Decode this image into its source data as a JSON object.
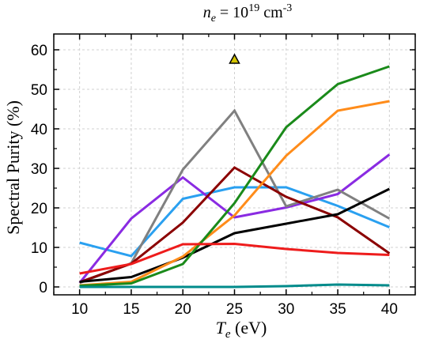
{
  "chart_data": {
    "type": "line",
    "title": {
      "var": "n",
      "sub": "e",
      "mid": " = 10",
      "sup": "19",
      "unit": " cm",
      "unit_sup": "-3"
    },
    "xlabel": {
      "var": "T",
      "sub": "e",
      "unit": " (eV)"
    },
    "ylabel": "Spectral Purity (%)",
    "x": [
      10,
      15,
      20,
      25,
      30,
      35,
      40
    ],
    "xlim": [
      7.5,
      42.5
    ],
    "ylim": [
      -2,
      64
    ],
    "xticks": [
      10,
      15,
      20,
      25,
      30,
      35,
      40
    ],
    "yticks": [
      0,
      10,
      20,
      30,
      40,
      50,
      60
    ],
    "grid": true,
    "legend": "none",
    "series": [
      {
        "color": "#2aa0f0",
        "values": [
          11.2,
          7.8,
          22.3,
          25.2,
          25.2,
          20.5,
          15.1
        ]
      },
      {
        "color": "#8a2be2",
        "values": [
          1.0,
          17.3,
          27.7,
          17.6,
          20.1,
          23.5,
          33.5
        ]
      },
      {
        "color": "#808080",
        "values": [
          1.0,
          6.0,
          29.7,
          44.6,
          20.4,
          24.6,
          17.3
        ]
      },
      {
        "color": "#8b0000",
        "values": [
          1.2,
          5.9,
          16.3,
          30.2,
          22.8,
          17.6,
          8.5
        ]
      },
      {
        "color": "#000000",
        "values": [
          1.3,
          2.5,
          7.4,
          13.6,
          16.0,
          18.4,
          24.8
        ]
      },
      {
        "color": "#ff8c1a",
        "values": [
          0.4,
          1.3,
          7.7,
          18.1,
          33.2,
          44.6,
          47.0
        ]
      },
      {
        "color": "#1a8a1a",
        "values": [
          0.3,
          0.9,
          5.8,
          21.2,
          40.4,
          51.3,
          55.8
        ]
      },
      {
        "color": "#ee1c1c",
        "values": [
          3.4,
          5.8,
          10.8,
          10.9,
          9.6,
          8.6,
          8.1
        ]
      },
      {
        "color": "#008b8b",
        "values": [
          0.0,
          0.0,
          0.0,
          0.0,
          0.2,
          0.6,
          0.4
        ]
      }
    ],
    "marker": {
      "shape": "triangle",
      "x": 25,
      "y": 57.6,
      "fill": "#d4c400",
      "stroke": "#000000"
    }
  }
}
